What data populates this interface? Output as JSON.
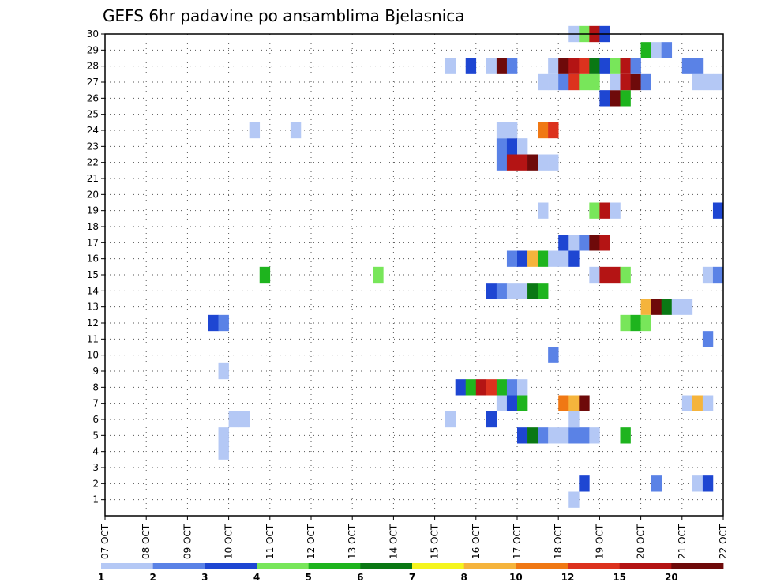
{
  "chart_data": {
    "type": "heatmap",
    "title": "GEFS 6hr padavine po ansamblima Bjelasnica",
    "x_tick_labels": [
      "07 OCT",
      "08 OCT",
      "09 OCT",
      "10 OCT",
      "11 OCT",
      "12 OCT",
      "13 OCT",
      "14 OCT",
      "15 OCT",
      "16 OCT",
      "17 OCT",
      "18 OCT",
      "19 OCT",
      "20 OCT",
      "21 OCT",
      "22 OCT"
    ],
    "y_tick_labels": [
      "1",
      "2",
      "3",
      "4",
      "5",
      "6",
      "7",
      "8",
      "9",
      "10",
      "11",
      "12",
      "13",
      "14",
      "15",
      "16",
      "17",
      "18",
      "19",
      "20",
      "21",
      "22",
      "23",
      "24",
      "25",
      "26",
      "27",
      "28",
      "29",
      "30"
    ],
    "xlim_days": [
      0,
      15
    ],
    "ylim": [
      0,
      30
    ],
    "time_step_hours": 6,
    "grid": true,
    "colorbar": {
      "labels": [
        "1",
        "2",
        "3",
        "4",
        "5",
        "6",
        "7",
        "8",
        "10",
        "12",
        "15",
        "20"
      ],
      "colors": [
        "#b4c8f5",
        "#5a82e6",
        "#1e46d2",
        "#78e65a",
        "#1eb41e",
        "#0a7814",
        "#f5f51e",
        "#f5b43c",
        "#f07814",
        "#dc321e",
        "#b41414",
        "#6e0a0a"
      ]
    },
    "cells_note": "cells: [day_offset_from_07_OCT_00UTC, ensemble_member, precip_mm]",
    "cells": [
      [
        11.25,
        0,
        1
      ],
      [
        11.5,
        1,
        3
      ],
      [
        13.25,
        1,
        2
      ],
      [
        14.25,
        1,
        1
      ],
      [
        14.5,
        1,
        3
      ],
      [
        2.75,
        3,
        1
      ],
      [
        2.75,
        4,
        1
      ],
      [
        10,
        4,
        3
      ],
      [
        10.25,
        4,
        6
      ],
      [
        10.5,
        4,
        2
      ],
      [
        10.75,
        4,
        1
      ],
      [
        11,
        4,
        1
      ],
      [
        11.25,
        4,
        2
      ],
      [
        11.5,
        4,
        2
      ],
      [
        11.75,
        4,
        1
      ],
      [
        12.5,
        4,
        5
      ],
      [
        3,
        5,
        1
      ],
      [
        3.25,
        5,
        1
      ],
      [
        8.25,
        5,
        1
      ],
      [
        9.25,
        5,
        3
      ],
      [
        11.25,
        5,
        1
      ],
      [
        9.5,
        6,
        1
      ],
      [
        9.75,
        6,
        3
      ],
      [
        10,
        6,
        5
      ],
      [
        11,
        6,
        10
      ],
      [
        11.25,
        6,
        8
      ],
      [
        11.5,
        6,
        20
      ],
      [
        14,
        6,
        1
      ],
      [
        14.25,
        6,
        8
      ],
      [
        14.5,
        6,
        1
      ],
      [
        8.5,
        7,
        3
      ],
      [
        8.75,
        7,
        5
      ],
      [
        9,
        7,
        15
      ],
      [
        9.25,
        7,
        12
      ],
      [
        9.5,
        7,
        5
      ],
      [
        9.75,
        7,
        2
      ],
      [
        10,
        7,
        1
      ],
      [
        2.75,
        8,
        1
      ],
      [
        10.75,
        9,
        2
      ],
      [
        14.5,
        10,
        2
      ],
      [
        2.5,
        11,
        3
      ],
      [
        2.75,
        11,
        2
      ],
      [
        12.5,
        11,
        4
      ],
      [
        12.75,
        11,
        5
      ],
      [
        13,
        11,
        4
      ],
      [
        13,
        12,
        8
      ],
      [
        13.25,
        12,
        20
      ],
      [
        13.5,
        12,
        6
      ],
      [
        13.75,
        12,
        1
      ],
      [
        14,
        12,
        1
      ],
      [
        9.25,
        13,
        3
      ],
      [
        9.5,
        13,
        2
      ],
      [
        9.75,
        13,
        1
      ],
      [
        10,
        13,
        1
      ],
      [
        10.25,
        13,
        6
      ],
      [
        10.5,
        13,
        5
      ],
      [
        3.75,
        14,
        5
      ],
      [
        6.5,
        14,
        4
      ],
      [
        11.75,
        14,
        1
      ],
      [
        12,
        14,
        15
      ],
      [
        12.25,
        14,
        15
      ],
      [
        12.5,
        14,
        4
      ],
      [
        14.5,
        14,
        1
      ],
      [
        14.75,
        14,
        2
      ],
      [
        9.75,
        15,
        2
      ],
      [
        10,
        15,
        3
      ],
      [
        10.25,
        15,
        8
      ],
      [
        10.5,
        15,
        5
      ],
      [
        10.75,
        15,
        1
      ],
      [
        11,
        15,
        1
      ],
      [
        11.25,
        15,
        3
      ],
      [
        11,
        16,
        3
      ],
      [
        11.25,
        16,
        1
      ],
      [
        11.5,
        16,
        2
      ],
      [
        11.75,
        16,
        20
      ],
      [
        12,
        16,
        15
      ],
      [
        10.5,
        18,
        1
      ],
      [
        11.75,
        18,
        4
      ],
      [
        12,
        18,
        15
      ],
      [
        12.25,
        18,
        1
      ],
      [
        14.75,
        18,
        3
      ],
      [
        9.5,
        21,
        2
      ],
      [
        9.75,
        21,
        15
      ],
      [
        10,
        21,
        15
      ],
      [
        10.25,
        21,
        20
      ],
      [
        10.5,
        21,
        1
      ],
      [
        10.75,
        21,
        1
      ],
      [
        9.5,
        22,
        2
      ],
      [
        9.75,
        22,
        3
      ],
      [
        10,
        22,
        1
      ],
      [
        9.5,
        23,
        1
      ],
      [
        9.75,
        23,
        1
      ],
      [
        10.5,
        23,
        10
      ],
      [
        10.75,
        23,
        12
      ],
      [
        3.5,
        23,
        1
      ],
      [
        4.5,
        23,
        1
      ],
      [
        12,
        25,
        3
      ],
      [
        12.25,
        25,
        20
      ],
      [
        12.5,
        25,
        5
      ],
      [
        10.5,
        26,
        1
      ],
      [
        10.75,
        26,
        1
      ],
      [
        11,
        26,
        2
      ],
      [
        11.25,
        26,
        12
      ],
      [
        11.5,
        26,
        4
      ],
      [
        11.75,
        26,
        4
      ],
      [
        12.25,
        26,
        1
      ],
      [
        12.5,
        26,
        15
      ],
      [
        12.75,
        26,
        20
      ],
      [
        13,
        26,
        2
      ],
      [
        14.25,
        26,
        1
      ],
      [
        14.5,
        26,
        1
      ],
      [
        14.75,
        26,
        1
      ],
      [
        8.25,
        27,
        1
      ],
      [
        8.75,
        27,
        3
      ],
      [
        9.25,
        27,
        1
      ],
      [
        9.5,
        27,
        20
      ],
      [
        9.75,
        27,
        2
      ],
      [
        10.75,
        27,
        1
      ],
      [
        11,
        27,
        20
      ],
      [
        11.25,
        27,
        15
      ],
      [
        11.5,
        27,
        12
      ],
      [
        11.75,
        27,
        6
      ],
      [
        12,
        27,
        3
      ],
      [
        12.25,
        27,
        4
      ],
      [
        12.5,
        27,
        15
      ],
      [
        12.75,
        27,
        2
      ],
      [
        14,
        27,
        2
      ],
      [
        14.25,
        27,
        2
      ],
      [
        13,
        28,
        5
      ],
      [
        13.25,
        28,
        1
      ],
      [
        13.5,
        28,
        2
      ],
      [
        11.25,
        29,
        1
      ],
      [
        11.5,
        29,
        4
      ],
      [
        11.75,
        29,
        15
      ],
      [
        12,
        29,
        3
      ]
    ]
  }
}
